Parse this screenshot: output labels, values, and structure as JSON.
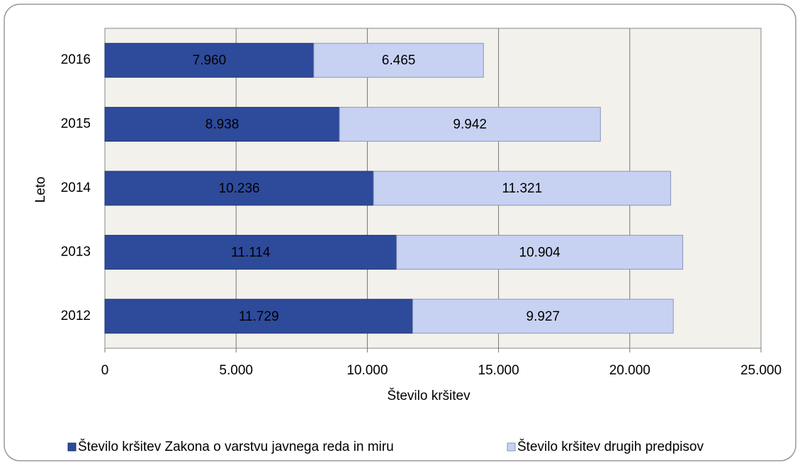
{
  "chart_data": {
    "type": "stacked_barh",
    "categories": [
      "2016",
      "2015",
      "2014",
      "2013",
      "2012"
    ],
    "series": [
      {
        "name": "Število kršitev Zakona o varstvu javnega reda in miru",
        "color": "#2e4a9a",
        "values": [
          7960,
          8938,
          10236,
          11114,
          11729
        ],
        "value_labels": [
          "7.960",
          "8.938",
          "10.236",
          "11.114",
          "11.729"
        ]
      },
      {
        "name": "Število kršitev drugih predpisov",
        "color": "#c7d2f2",
        "values": [
          6465,
          9942,
          11321,
          10904,
          9927
        ],
        "value_labels": [
          "6.465",
          "9.942",
          "11.321",
          "10.904",
          "9.927"
        ]
      }
    ],
    "xlabel": "Število kršitev",
    "ylabel": "Leto",
    "xlim": [
      0,
      25000
    ],
    "xticks": [
      0,
      {
        "value": 5000,
        "label": "5.000"
      },
      {
        "value": 10000,
        "label": "10.000"
      },
      {
        "value": 15000,
        "label": "15.000"
      },
      {
        "value": 20000,
        "label": "20.000"
      },
      {
        "value": 25000,
        "label": "25.000"
      }
    ],
    "grid": true,
    "legend": "bottom"
  }
}
